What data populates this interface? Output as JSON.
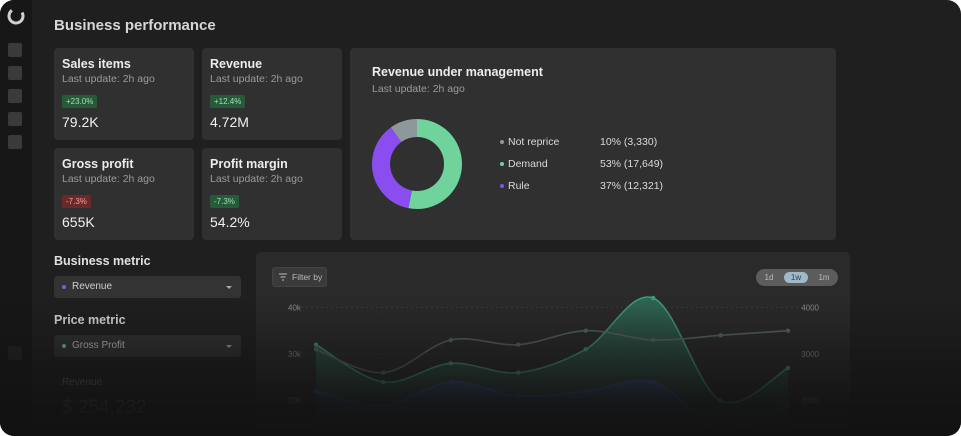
{
  "page": {
    "title": "Business performance"
  },
  "kpis": [
    {
      "title": "Sales items",
      "sub": "Last update: 2h ago",
      "change": "+23.0%",
      "value": "79.2K"
    },
    {
      "title": "Revenue",
      "sub": "Last update: 2h ago",
      "change": "+12.4%",
      "value": "4.72M"
    },
    {
      "title": "Gross profit",
      "sub": "Last update: 2h ago",
      "change": "-7.3%",
      "value": "655K"
    },
    {
      "title": "Profit margin",
      "sub": "Last update: 2h ago",
      "change": "-7.3%",
      "value": "54.2%"
    }
  ],
  "rum": {
    "title": "Revenue under management",
    "sub": "Last update: 2h ago",
    "legend": [
      {
        "name": "Not reprice",
        "value": "10% (3,330)",
        "color": "#8e979b"
      },
      {
        "name": "Demand",
        "value": "53% (17,649)",
        "color": "#6fd39b"
      },
      {
        "name": "Rule",
        "value": "37% (12,321)",
        "color": "#8a4ef0"
      }
    ]
  },
  "controls": {
    "business_metric_label": "Business metric",
    "business_metric_value": "Revenue",
    "price_metric_label": "Price metric",
    "price_metric_value": "Gross Profit",
    "selected_metric_label": "Revenue",
    "selected_metric_value": "$ 254,232"
  },
  "chart": {
    "filter_label": "Filter by",
    "ranges": [
      "1d",
      "1w",
      "1m"
    ],
    "active_range": "1w",
    "left_ticks": [
      "40k",
      "30k",
      "20k"
    ],
    "right_ticks": [
      "4000",
      "3000",
      "2000"
    ]
  },
  "chart_data": [
    {
      "type": "pie",
      "title": "Revenue under management",
      "categories": [
        "Not reprice",
        "Demand",
        "Rule"
      ],
      "values": [
        3330,
        17649,
        12321
      ],
      "colors": [
        "#8e979b",
        "#6fd39b",
        "#8a4ef0"
      ]
    },
    {
      "type": "line",
      "x": [
        0,
        1,
        2,
        3,
        4,
        5,
        6,
        7
      ],
      "ylim": [
        15000,
        45000
      ],
      "y2lim": [
        1500,
        4500
      ],
      "series": [
        {
          "values": [
            32000,
            24000,
            28000,
            26000,
            31000,
            42000,
            20000,
            27000
          ],
          "color": "#3f9a78"
        },
        {
          "values": [
            31000,
            26000,
            33000,
            32000,
            35000,
            33000,
            34000,
            35000
          ],
          "color": "#5a6a62"
        },
        {
          "values": [
            22000,
            19000,
            24000,
            21000,
            22000,
            24000,
            14000,
            19000
          ],
          "color": "#4a3ab0"
        }
      ]
    }
  ]
}
